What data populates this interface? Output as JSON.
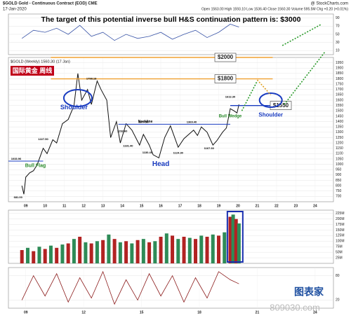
{
  "header": {
    "symbol": "$GOLD Gold - Continuous Contract (EOD) CME",
    "date": "17-Jan-2020",
    "source": "@ StockCharts.com",
    "quote": "Open 1563.00 High 1593.10 Low 1536.40 Close 1560.30 Volume 595.5M Chg +0.20 (+0.01%)",
    "watermark": "图表家",
    "site": "809030.com"
  },
  "chart_data": [
    {
      "type": "line",
      "title": "The target of this potential inverse bull H&S continuation pattern is: $3000",
      "color": "#3a55a8",
      "xlim": [
        2008.1,
        2024.95
      ],
      "ylim": [
        0,
        100
      ],
      "yticks": [
        10,
        30,
        50,
        70,
        90
      ],
      "x": [
        2008.8,
        2009.4,
        2010.0,
        2010.6,
        2011.2,
        2011.8,
        2012.4,
        2013.0,
        2013.6,
        2014.2,
        2014.8,
        2015.4,
        2016.0,
        2016.6,
        2017.2,
        2017.8,
        2018.4,
        2019.0,
        2019.6,
        2020.05
      ],
      "values": [
        40,
        60,
        55,
        65,
        50,
        72,
        45,
        55,
        35,
        50,
        40,
        45,
        55,
        38,
        50,
        60,
        42,
        55,
        75,
        68
      ]
    },
    {
      "type": "line",
      "legend": "$GOLD (Weekly) 1560.30 (17 Jan)",
      "badge": "国际黄金 周线",
      "color": "#111",
      "xlim": [
        2008.1,
        2024.95
      ],
      "ylim": [
        650,
        2000
      ],
      "yticks": [
        700,
        750,
        800,
        850,
        900,
        950,
        1000,
        1050,
        1100,
        1150,
        1200,
        1250,
        1300,
        1350,
        1400,
        1450,
        1500,
        1550,
        1600,
        1650,
        1700,
        1750,
        1800,
        1850,
        1900,
        1950
      ],
      "xticks": [
        {
          "value": 2009,
          "label": "09"
        },
        {
          "value": 2010,
          "label": "10"
        },
        {
          "value": 2011,
          "label": "11"
        },
        {
          "value": 2012,
          "label": "12"
        },
        {
          "value": 2013,
          "label": "13"
        },
        {
          "value": 2014,
          "label": "14"
        },
        {
          "value": 2015,
          "label": "15"
        },
        {
          "value": 2016,
          "label": "16"
        },
        {
          "value": 2017,
          "label": "17"
        },
        {
          "value": 2018,
          "label": "18"
        },
        {
          "value": 2019,
          "label": "19"
        },
        {
          "value": 2020,
          "label": "20"
        },
        {
          "value": 2021,
          "label": "21"
        },
        {
          "value": 2022,
          "label": "22"
        },
        {
          "value": 2023,
          "label": "23"
        },
        {
          "value": 2024,
          "label": "24"
        }
      ],
      "x": [
        2008.8,
        2008.9,
        2009.0,
        2009.2,
        2009.4,
        2009.6,
        2009.9,
        2010.1,
        2010.4,
        2010.6,
        2010.9,
        2011.2,
        2011.5,
        2011.7,
        2011.9,
        2012.2,
        2012.4,
        2012.7,
        2012.9,
        2013.2,
        2013.4,
        2013.7,
        2013.9,
        2014.2,
        2014.5,
        2014.9,
        2015.1,
        2015.4,
        2015.6,
        2015.9,
        2016.2,
        2016.5,
        2016.9,
        2017.2,
        2017.7,
        2017.9,
        2018.1,
        2018.4,
        2018.7,
        2018.9,
        2019.2,
        2019.4,
        2019.6,
        2019.8,
        2019.95,
        2020.05
      ],
      "values": [
        800,
        720,
        880,
        920,
        940,
        1000,
        1150,
        1100,
        1230,
        1200,
        1380,
        1420,
        1550,
        1850,
        1600,
        1700,
        1560,
        1780,
        1700,
        1600,
        1250,
        1400,
        1200,
        1380,
        1320,
        1180,
        1280,
        1180,
        1090,
        1060,
        1250,
        1360,
        1160,
        1240,
        1320,
        1270,
        1350,
        1300,
        1180,
        1220,
        1300,
        1340,
        1520,
        1500,
        1480,
        1560
      ],
      "levels": [
        {
          "value": 2000,
          "label": "$2000",
          "color": "#f0a030"
        },
        {
          "value": 1800,
          "label": "$1800",
          "color": "#f0a030"
        },
        {
          "value": 1550,
          "label": "$1550",
          "color": "#1a3cc0"
        }
      ],
      "annotations": [
        "Shoulder",
        "Head",
        "Shoulder",
        "Neckline",
        "Bull Flag",
        "Bull Wedge",
        "1798.18",
        "1292.60",
        "1377.50",
        "1369.40",
        "1181.40",
        "1130.40",
        "1124.30",
        "1167.30",
        "1613.30",
        "1227.50",
        "1033.96",
        "681.00"
      ]
    },
    {
      "type": "bar",
      "colors": [
        "#b22222",
        "#2e8b57"
      ],
      "xlim": [
        2008.1,
        2024.95
      ],
      "ylim": [
        0,
        240
      ],
      "yticks": [
        {
          "value": 25,
          "label": "25M"
        },
        {
          "value": 50,
          "label": "50M"
        },
        {
          "value": 75,
          "label": "75M"
        },
        {
          "value": 100,
          "label": "100M"
        },
        {
          "value": 125,
          "label": "125M"
        },
        {
          "value": 150,
          "label": "150M"
        },
        {
          "value": 175,
          "label": "175M"
        },
        {
          "value": 200,
          "label": "200M"
        },
        {
          "value": 225,
          "label": "225M"
        }
      ],
      "x": [
        2008.8,
        2009.1,
        2009.4,
        2009.7,
        2010.0,
        2010.3,
        2010.6,
        2010.9,
        2011.2,
        2011.5,
        2011.8,
        2012.1,
        2012.4,
        2012.7,
        2013.0,
        2013.3,
        2013.6,
        2013.9,
        2014.2,
        2014.5,
        2014.8,
        2015.1,
        2015.4,
        2015.7,
        2016.0,
        2016.3,
        2016.6,
        2016.9,
        2017.2,
        2017.5,
        2017.8,
        2018.1,
        2018.4,
        2018.7,
        2019.0,
        2019.3,
        2019.6,
        2019.75,
        2019.9,
        2020.05
      ],
      "values": [
        60,
        70,
        55,
        75,
        65,
        80,
        70,
        85,
        90,
        110,
        120,
        95,
        90,
        100,
        105,
        130,
        110,
        95,
        100,
        90,
        105,
        110,
        95,
        100,
        120,
        135,
        125,
        110,
        120,
        115,
        110,
        125,
        120,
        130,
        125,
        140,
        210,
        220,
        200,
        180
      ]
    },
    {
      "type": "line",
      "color": "#8b1a1a",
      "xlim": [
        2008.1,
        2024.95
      ],
      "ylim": [
        0,
        100
      ],
      "yticks": [
        20,
        80
      ],
      "xticks": [
        {
          "value": 2009,
          "label": "09"
        },
        {
          "value": 2012,
          "label": "12"
        },
        {
          "value": 2015,
          "label": "15"
        },
        {
          "value": 2018,
          "label": "18"
        },
        {
          "value": 2021,
          "label": "21"
        },
        {
          "value": 2024,
          "label": "24"
        }
      ],
      "x": [
        2008.8,
        2009.4,
        2010.0,
        2010.6,
        2011.2,
        2011.8,
        2012.4,
        2013.0,
        2013.6,
        2014.2,
        2014.8,
        2015.4,
        2016.0,
        2016.6,
        2017.2,
        2017.8,
        2018.4,
        2019.0,
        2019.6,
        2020.05
      ],
      "values": [
        20,
        80,
        30,
        85,
        15,
        75,
        25,
        90,
        10,
        70,
        20,
        85,
        30,
        80,
        15,
        75,
        25,
        90,
        70,
        60
      ]
    }
  ]
}
